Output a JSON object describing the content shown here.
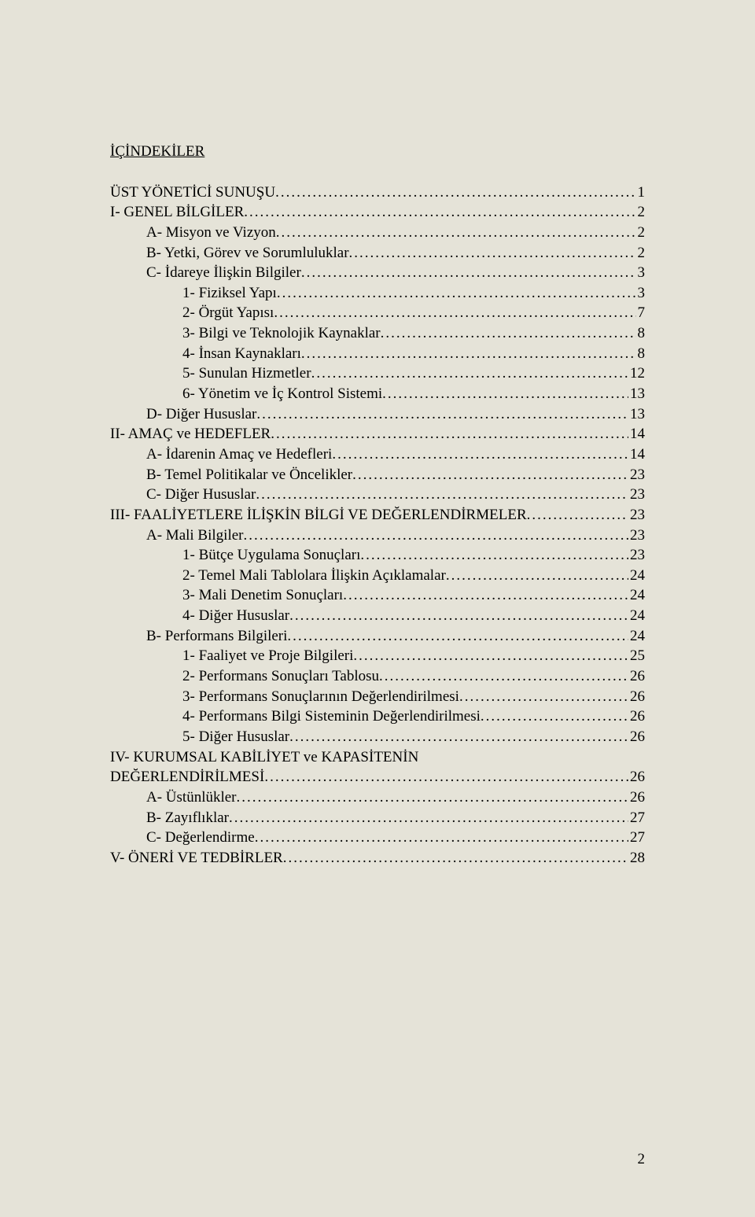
{
  "title": "İÇİNDEKİLER",
  "page_number": "2",
  "font_family": "Times New Roman",
  "base_font_size_pt": 14,
  "background_color": "#e5e3d8",
  "text_color": "#000000",
  "entries": [
    {
      "label": "ÜST YÖNETİCİ SUNUŞU",
      "page": "1",
      "level": 0
    },
    {
      "label": "I- GENEL BİLGİLER",
      "page": "2",
      "level": 0
    },
    {
      "label": "A- Misyon ve Vizyon",
      "page": "2",
      "level": 1
    },
    {
      "label": "B- Yetki, Görev ve Sorumluluklar",
      "page": "2",
      "level": 1
    },
    {
      "label": "C- İdareye İlişkin Bilgiler",
      "page": "3",
      "level": 1
    },
    {
      "label": "1- Fiziksel Yapı",
      "page": "3",
      "level": 2
    },
    {
      "label": "2- Örgüt Yapısı",
      "page": "7",
      "level": 2
    },
    {
      "label": "3- Bilgi ve Teknolojik Kaynaklar",
      "page": "8",
      "level": 2
    },
    {
      "label": "4- İnsan Kaynakları",
      "page": "8",
      "level": 2
    },
    {
      "label": "5- Sunulan Hizmetler",
      "page": "12",
      "level": 2
    },
    {
      "label": "6- Yönetim ve İç Kontrol Sistemi",
      "page": "13",
      "level": 2
    },
    {
      "label": "D- Diğer Hususlar",
      "page": "13",
      "level": 1
    },
    {
      "label": "II- AMAÇ ve HEDEFLER",
      "page": "14",
      "level": 0
    },
    {
      "label": "A- İdarenin Amaç ve Hedefleri",
      "page": "14",
      "level": 1
    },
    {
      "label": "B- Temel Politikalar ve Öncelikler",
      "page": "23",
      "level": 1
    },
    {
      "label": "C- Diğer Hususlar",
      "page": "23",
      "level": 1
    },
    {
      "label": "III- FAALİYETLERE İLİŞKİN BİLGİ VE DEĞERLENDİRMELER",
      "page": "23",
      "level": 0
    },
    {
      "label": "A- Mali Bilgiler",
      "page": "23",
      "level": 1
    },
    {
      "label": "1- Bütçe Uygulama Sonuçları",
      "page": "23",
      "level": 2
    },
    {
      "label": "2- Temel Mali Tablolara İlişkin Açıklamalar",
      "page": "24",
      "level": 2
    },
    {
      "label": "3- Mali Denetim Sonuçları",
      "page": "24",
      "level": 2
    },
    {
      "label": "4- Diğer Hususlar",
      "page": "24",
      "level": 2
    },
    {
      "label": "B- Performans Bilgileri",
      "page": "24",
      "level": 1
    },
    {
      "label": "1- Faaliyet ve Proje Bilgileri",
      "page": "25",
      "level": 2
    },
    {
      "label": "2- Performans Sonuçları Tablosu",
      "page": "26",
      "level": 2
    },
    {
      "label": "3- Performans Sonuçlarının Değerlendirilmesi",
      "page": "26",
      "level": 2
    },
    {
      "label": "4- Performans Bilgi Sisteminin Değerlendirilmesi",
      "page": "26",
      "level": 2
    },
    {
      "label": "5- Diğer Hususlar",
      "page": "26",
      "level": 2
    },
    {
      "label": "IV- KURUMSAL KABİLİYET ve KAPASİTENİN",
      "page": "",
      "level": 0,
      "no_page": true
    },
    {
      "label": "DEĞERLENDİRİLMESİ",
      "page": "26",
      "level": 0
    },
    {
      "label": "A- Üstünlükler",
      "page": "26",
      "level": 1
    },
    {
      "label": "B-  Zayıflıklar",
      "page": "27",
      "level": 1
    },
    {
      "label": "C- Değerlendirme",
      "page": "27",
      "level": 1
    },
    {
      "label": "V- ÖNERİ VE TEDBİRLER",
      "page": "28",
      "level": 0
    }
  ]
}
